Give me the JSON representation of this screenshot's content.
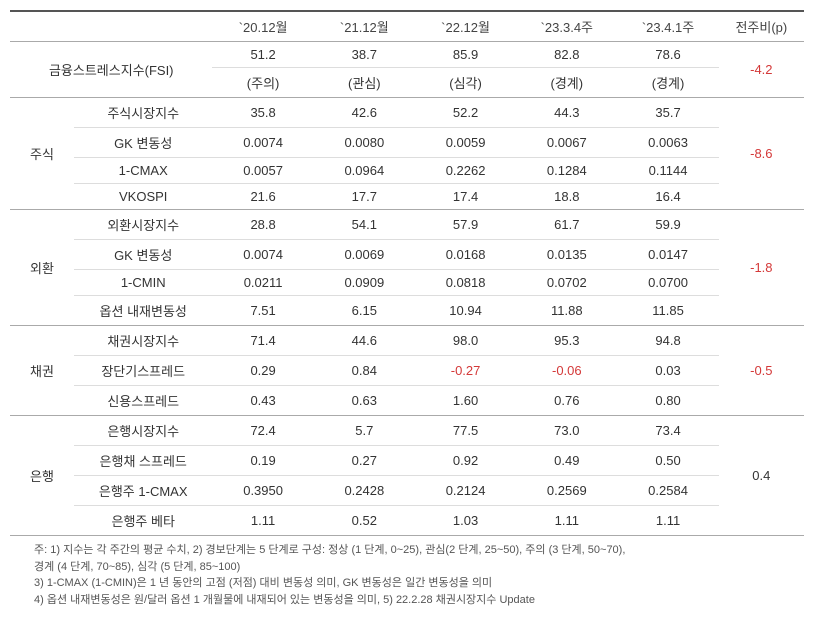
{
  "header": {
    "blank1": "",
    "blank2": "",
    "cols": [
      "`20.12월",
      "`21.12월",
      "`22.12월",
      "`23.3.4주",
      "`23.4.1주"
    ],
    "delta": "전주비(p)"
  },
  "fsi": {
    "title": "금융스트레스지수(FSI)",
    "vals": [
      "51.2",
      "38.7",
      "85.9",
      "82.8",
      "78.6"
    ],
    "levels": [
      "(주의)",
      "(관심)",
      "(심각)",
      "(경계)",
      "(경계)"
    ],
    "delta": "-4.2",
    "delta_neg": true
  },
  "groups": [
    {
      "name": "주식",
      "rows": [
        {
          "label": "주식시장지수",
          "vals": [
            "35.8",
            "42.6",
            "52.2",
            "44.3",
            "35.7"
          ],
          "neg": []
        },
        {
          "label": "GK 변동성",
          "vals": [
            "0.0074",
            "0.0080",
            "0.0059",
            "0.0067",
            "0.0063"
          ],
          "neg": []
        },
        {
          "label": "1-CMAX",
          "vals": [
            "0.0057",
            "0.0964",
            "0.2262",
            "0.1284",
            "0.1144"
          ],
          "neg": []
        },
        {
          "label": "VKOSPI",
          "vals": [
            "21.6",
            "17.7",
            "17.4",
            "18.8",
            "16.4"
          ],
          "neg": []
        }
      ],
      "delta": "-8.6",
      "delta_neg": true
    },
    {
      "name": "외환",
      "rows": [
        {
          "label": "외환시장지수",
          "vals": [
            "28.8",
            "54.1",
            "57.9",
            "61.7",
            "59.9"
          ],
          "neg": []
        },
        {
          "label": "GK 변동성",
          "vals": [
            "0.0074",
            "0.0069",
            "0.0168",
            "0.0135",
            "0.0147"
          ],
          "neg": []
        },
        {
          "label": "1-CMIN",
          "vals": [
            "0.0211",
            "0.0909",
            "0.0818",
            "0.0702",
            "0.0700"
          ],
          "neg": []
        },
        {
          "label": "옵션 내재변동성",
          "vals": [
            "7.51",
            "6.15",
            "10.94",
            "11.88",
            "11.85"
          ],
          "neg": []
        }
      ],
      "delta": "-1.8",
      "delta_neg": true
    },
    {
      "name": "채권",
      "rows": [
        {
          "label": "채권시장지수",
          "vals": [
            "71.4",
            "44.6",
            "98.0",
            "95.3",
            "94.8"
          ],
          "neg": []
        },
        {
          "label": "장단기스프레드",
          "vals": [
            "0.29",
            "0.84",
            "-0.27",
            "-0.06",
            "0.03"
          ],
          "neg": [
            2,
            3
          ]
        },
        {
          "label": "신용스프레드",
          "vals": [
            "0.43",
            "0.63",
            "1.60",
            "0.76",
            "0.80"
          ],
          "neg": []
        }
      ],
      "delta": "-0.5",
      "delta_neg": true
    },
    {
      "name": "은행",
      "rows": [
        {
          "label": "은행시장지수",
          "vals": [
            "72.4",
            "5.7",
            "77.5",
            "73.0",
            "73.4"
          ],
          "neg": []
        },
        {
          "label": "은행채 스프레드",
          "vals": [
            "0.19",
            "0.27",
            "0.92",
            "0.49",
            "0.50"
          ],
          "neg": []
        },
        {
          "label": "은행주 1-CMAX",
          "vals": [
            "0.3950",
            "0.2428",
            "0.2124",
            "0.2569",
            "0.2584"
          ],
          "neg": []
        },
        {
          "label": "은행주 베타",
          "vals": [
            "1.11",
            "0.52",
            "1.03",
            "1.11",
            "1.11"
          ],
          "neg": []
        }
      ],
      "delta": "0.4",
      "delta_neg": false
    }
  ],
  "footnotes": [
    "주: 1) 지수는 각 주간의 평균 수치, 2) 경보단계는 5 단계로 구성: 정상 (1 단계, 0~25), 관심(2 단계, 25~50), 주의 (3 단계, 50~70),",
    "      경계 (4 단계, 70~85), 심각 (5 단계, 85~100)",
    "   3) 1-CMAX (1-CMIN)은 1 년 동안의 고점 (저점) 대비 변동성 의미, GK 변동성은 일간 변동성을 의미",
    "   4) 옵션 내재변동성은 원/달러 옵션 1 개월물에 내재되어 있는 변동성을 의미, 5) 22.2.28 채권시장지수 Update"
  ],
  "colors": {
    "neg": "#d43939",
    "border_heavy": "#555",
    "border_light": "#ddd",
    "border_mid": "#aaa"
  }
}
